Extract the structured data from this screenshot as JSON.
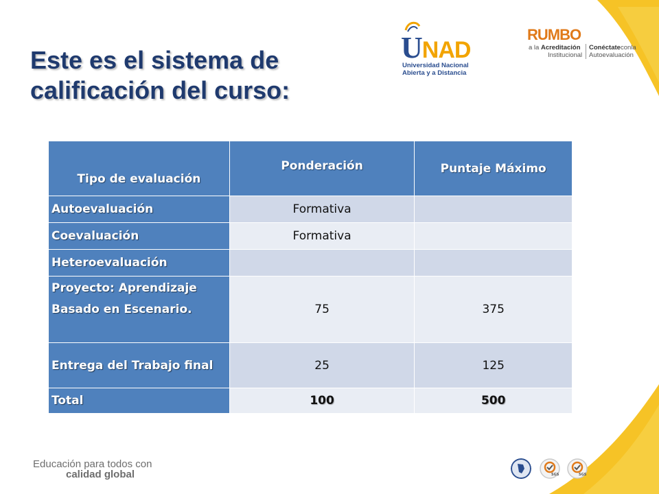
{
  "slide": {
    "title_line1": "Este es el sistema de",
    "title_line2": "calificación del curso:"
  },
  "logos": {
    "unad": {
      "wordmark_u": "U",
      "wordmark_rest": "NAD",
      "line1": "Universidad Nacional",
      "line2": "Abierta y a Distancia"
    },
    "rumbo": {
      "wordmark": "RUMBO",
      "line1_pre": "a la ",
      "line1_bold": "Acreditación",
      "line2": "Institucional",
      "line3_bold": "Conéctate",
      "line3_rest": "conla",
      "line4": "Autoevaluación"
    }
  },
  "table": {
    "headers": [
      "Tipo de evaluación",
      "Ponderación",
      "Puntaje Máximo"
    ],
    "rows": [
      {
        "tipo": "Autoevaluación",
        "ponderacion": "Formativa",
        "puntaje": ""
      },
      {
        "tipo": "Coevaluación",
        "ponderacion": "Formativa",
        "puntaje": ""
      },
      {
        "tipo": "Heteroevaluación",
        "ponderacion": "",
        "puntaje": ""
      },
      {
        "tipo": "Proyecto: Aprendizaje Basado en Escenario.",
        "ponderacion": "75",
        "puntaje": "375"
      },
      {
        "tipo": "Entrega del Trabajo final",
        "ponderacion": "25",
        "puntaje": "125"
      },
      {
        "tipo": "Total",
        "ponderacion": "100",
        "puntaje": "500"
      }
    ]
  },
  "footer": {
    "slogan_line1": "Educación para todos con",
    "slogan_line2": "calidad global",
    "seal_labels": [
      "SGS",
      "SGS"
    ]
  },
  "colors": {
    "header_blue": "#4f81bd",
    "row_odd": "#d0d8e8",
    "row_even": "#e9edf4",
    "title_navy": "#1f3a6e",
    "accent_orange": "#f2a400"
  }
}
